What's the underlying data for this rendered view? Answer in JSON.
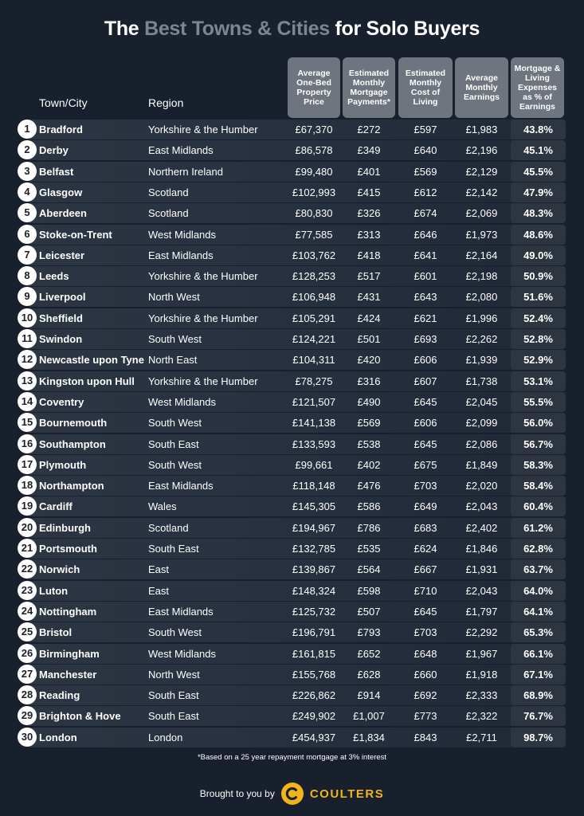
{
  "title": {
    "part1": "The ",
    "part2": "Best Towns & Cities",
    "part3": " for Solo Buyers"
  },
  "columns": {
    "town": "Town/City",
    "region": "Region",
    "price": "Average One-Bed Property Price",
    "mortgage": "Estimated Monthly Mortgage Payments*",
    "cost": "Estimated Monthly Cost of Living",
    "earnings": "Average Monthly Earnings",
    "pct": "Mortgage & Living Expenses as % of Earnings"
  },
  "rows": [
    {
      "rank": "1",
      "town": "Bradford",
      "region": "Yorkshire & the Humber",
      "price": "£67,370",
      "mortgage": "£272",
      "cost": "£597",
      "earnings": "£1,983",
      "pct": "43.8%"
    },
    {
      "rank": "2",
      "town": "Derby",
      "region": "East Midlands",
      "price": "£86,578",
      "mortgage": "£349",
      "cost": "£640",
      "earnings": "£2,196",
      "pct": "45.1%"
    },
    {
      "rank": "3",
      "town": "Belfast",
      "region": "Northern Ireland",
      "price": "£99,480",
      "mortgage": "£401",
      "cost": "£569",
      "earnings": "£2,129",
      "pct": "45.5%"
    },
    {
      "rank": "4",
      "town": "Glasgow",
      "region": "Scotland",
      "price": "£102,993",
      "mortgage": "£415",
      "cost": "£612",
      "earnings": "£2,142",
      "pct": "47.9%"
    },
    {
      "rank": "5",
      "town": "Aberdeen",
      "region": "Scotland",
      "price": "£80,830",
      "mortgage": "£326",
      "cost": "£674",
      "earnings": "£2,069",
      "pct": "48.3%"
    },
    {
      "rank": "6",
      "town": "Stoke-on-Trent",
      "region": "West Midlands",
      "price": "£77,585",
      "mortgage": "£313",
      "cost": "£646",
      "earnings": "£1,973",
      "pct": "48.6%"
    },
    {
      "rank": "7",
      "town": "Leicester",
      "region": "East Midlands",
      "price": "£103,762",
      "mortgage": "£418",
      "cost": "£641",
      "earnings": "£2,164",
      "pct": "49.0%"
    },
    {
      "rank": "8",
      "town": "Leeds",
      "region": "Yorkshire & the Humber",
      "price": "£128,253",
      "mortgage": "£517",
      "cost": "£601",
      "earnings": "£2,198",
      "pct": "50.9%"
    },
    {
      "rank": "9",
      "town": "Liverpool",
      "region": "North West",
      "price": "£106,948",
      "mortgage": "£431",
      "cost": "£643",
      "earnings": "£2,080",
      "pct": "51.6%"
    },
    {
      "rank": "10",
      "town": "Sheffield",
      "region": "Yorkshire & the Humber",
      "price": "£105,291",
      "mortgage": "£424",
      "cost": "£621",
      "earnings": "£1,996",
      "pct": "52.4%"
    },
    {
      "rank": "11",
      "town": "Swindon",
      "region": "South West",
      "price": "£124,221",
      "mortgage": "£501",
      "cost": "£693",
      "earnings": "£2,262",
      "pct": "52.8%"
    },
    {
      "rank": "12",
      "town": "Newcastle upon Tyne",
      "region": "North East",
      "price": "£104,311",
      "mortgage": "£420",
      "cost": "£606",
      "earnings": "£1,939",
      "pct": "52.9%"
    },
    {
      "rank": "13",
      "town": "Kingston upon Hull",
      "region": "Yorkshire & the Humber",
      "price": "£78,275",
      "mortgage": "£316",
      "cost": "£607",
      "earnings": "£1,738",
      "pct": "53.1%"
    },
    {
      "rank": "14",
      "town": "Coventry",
      "region": "West Midlands",
      "price": "£121,507",
      "mortgage": "£490",
      "cost": "£645",
      "earnings": "£2,045",
      "pct": "55.5%"
    },
    {
      "rank": "15",
      "town": "Bournemouth",
      "region": "South West",
      "price": "£141,138",
      "mortgage": "£569",
      "cost": "£606",
      "earnings": "£2,099",
      "pct": "56.0%"
    },
    {
      "rank": "16",
      "town": "Southampton",
      "region": "South East",
      "price": "£133,593",
      "mortgage": "£538",
      "cost": "£645",
      "earnings": "£2,086",
      "pct": "56.7%"
    },
    {
      "rank": "17",
      "town": "Plymouth",
      "region": "South West",
      "price": "£99,661",
      "mortgage": "£402",
      "cost": "£675",
      "earnings": "£1,849",
      "pct": "58.3%"
    },
    {
      "rank": "18",
      "town": "Northampton",
      "region": "East Midlands",
      "price": "£118,148",
      "mortgage": "£476",
      "cost": "£703",
      "earnings": "£2,020",
      "pct": "58.4%"
    },
    {
      "rank": "19",
      "town": "Cardiff",
      "region": "Wales",
      "price": "£145,305",
      "mortgage": "£586",
      "cost": "£649",
      "earnings": "£2,043",
      "pct": "60.4%"
    },
    {
      "rank": "20",
      "town": "Edinburgh",
      "region": "Scotland",
      "price": "£194,967",
      "mortgage": "£786",
      "cost": "£683",
      "earnings": "£2,402",
      "pct": "61.2%"
    },
    {
      "rank": "21",
      "town": "Portsmouth",
      "region": "South East",
      "price": "£132,785",
      "mortgage": "£535",
      "cost": "£624",
      "earnings": "£1,846",
      "pct": "62.8%"
    },
    {
      "rank": "22",
      "town": "Norwich",
      "region": "East",
      "price": "£139,867",
      "mortgage": "£564",
      "cost": "£667",
      "earnings": "£1,931",
      "pct": "63.7%"
    },
    {
      "rank": "23",
      "town": "Luton",
      "region": "East",
      "price": "£148,324",
      "mortgage": "£598",
      "cost": "£710",
      "earnings": "£2,043",
      "pct": "64.0%"
    },
    {
      "rank": "24",
      "town": "Nottingham",
      "region": "East Midlands",
      "price": "£125,732",
      "mortgage": "£507",
      "cost": "£645",
      "earnings": "£1,797",
      "pct": "64.1%"
    },
    {
      "rank": "25",
      "town": "Bristol",
      "region": "South West",
      "price": "£196,791",
      "mortgage": "£793",
      "cost": "£703",
      "earnings": "£2,292",
      "pct": "65.3%"
    },
    {
      "rank": "26",
      "town": "Birmingham",
      "region": "West Midlands",
      "price": "£161,815",
      "mortgage": "£652",
      "cost": "£648",
      "earnings": "£1,967",
      "pct": "66.1%"
    },
    {
      "rank": "27",
      "town": "Manchester",
      "region": "North West",
      "price": "£155,768",
      "mortgage": "£628",
      "cost": "£660",
      "earnings": "£1,918",
      "pct": "67.1%"
    },
    {
      "rank": "28",
      "town": "Reading",
      "region": "South East",
      "price": "£226,862",
      "mortgage": "£914",
      "cost": "£692",
      "earnings": "£2,333",
      "pct": "68.9%"
    },
    {
      "rank": "29",
      "town": "Brighton & Hove",
      "region": "South East",
      "price": "£249,902",
      "mortgage": "£1,007",
      "cost": "£773",
      "earnings": "£2,322",
      "pct": "76.7%"
    },
    {
      "rank": "30",
      "town": "London",
      "region": "London",
      "price": "£454,937",
      "mortgage": "£1,834",
      "cost": "£843",
      "earnings": "£2,711",
      "pct": "98.7%"
    }
  ],
  "footnote": "*Based on a 25 year repayment mortgage at 3% interest",
  "footer": {
    "brought": "Brought to you by",
    "brand": "COULTERS",
    "logo_icon": "coulters-c-logo-icon"
  },
  "colors": {
    "background": "#17202c",
    "header_box": "#6f757e",
    "muted_title": "#7c8593",
    "brand": "#f2b31b"
  }
}
